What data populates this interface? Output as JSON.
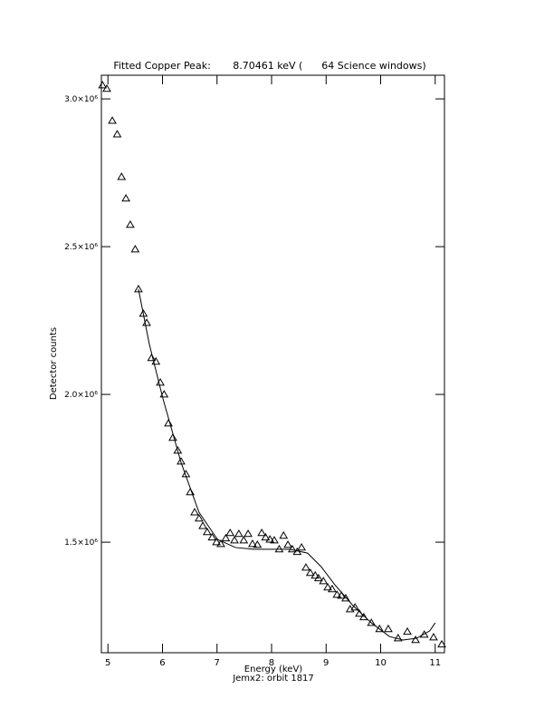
{
  "chart_data": {
    "type": "scatter",
    "title": "Fitted Copper Peak:       8.70461 keV (      64 Science windows)",
    "xlabel": "Energy (keV)",
    "ylabel": "Detector counts",
    "subtitle": "Jemx2: orbit 1817",
    "xlim": [
      4.88,
      11.17
    ],
    "ylim": [
      1126000,
      3080000
    ],
    "xticks": [
      5,
      6,
      7,
      8,
      9,
      10,
      11
    ],
    "yticks": [
      {
        "value": 1500000,
        "label": "1.5×10⁶"
      },
      {
        "value": 2000000,
        "label": "2.0×10⁶"
      },
      {
        "value": 2500000,
        "label": "2.5×10⁶"
      },
      {
        "value": 3000000,
        "label": "3.0×10⁶"
      }
    ],
    "series": [
      {
        "marker": "triangle",
        "color": "#000000",
        "x": [
          4.9,
          4.98,
          5.08,
          5.17,
          5.25,
          5.33,
          5.41,
          5.5,
          5.56,
          5.65,
          5.71,
          5.8,
          5.88,
          5.96,
          6.03,
          6.11,
          6.19,
          6.28,
          6.34,
          6.43,
          6.51,
          6.59,
          6.67,
          6.74,
          6.82,
          6.91,
          6.99,
          7.07,
          7.16,
          7.24,
          7.32,
          7.4,
          7.49,
          7.57,
          7.65,
          7.74,
          7.82,
          7.89,
          7.97,
          8.05,
          8.14,
          8.22,
          8.3,
          8.38,
          8.47,
          8.55,
          8.63,
          8.71,
          8.8,
          8.86,
          8.95,
          9.03,
          9.11,
          9.2,
          9.28,
          9.36,
          9.44,
          9.53,
          9.61,
          9.69,
          9.83,
          9.98,
          10.14,
          10.32,
          10.49,
          10.64,
          10.8,
          10.97,
          11.12
        ],
        "values": [
          3046000,
          3034000,
          2926000,
          2880000,
          2736000,
          2663000,
          2574000,
          2491000,
          2356000,
          2273000,
          2242000,
          2123000,
          2111000,
          2040000,
          2000000,
          1902000,
          1853000,
          1810000,
          1773000,
          1730000,
          1669000,
          1601000,
          1580000,
          1555000,
          1534000,
          1516000,
          1500000,
          1494000,
          1513000,
          1531000,
          1506000,
          1528000,
          1506000,
          1528000,
          1494000,
          1491000,
          1531000,
          1516000,
          1509000,
          1506000,
          1476000,
          1522000,
          1491000,
          1476000,
          1467000,
          1482000,
          1414000,
          1396000,
          1387000,
          1378000,
          1368000,
          1347000,
          1341000,
          1322000,
          1319000,
          1310000,
          1273000,
          1279000,
          1258000,
          1246000,
          1227000,
          1206000,
          1206000,
          1175000,
          1197000,
          1169000,
          1187000,
          1178000,
          1154000
        ]
      },
      {
        "marker": "line",
        "color": "#000000",
        "x": [
          5.56,
          5.76,
          6.01,
          6.34,
          6.67,
          7.01,
          7.34,
          7.67,
          8.0,
          8.33,
          8.66,
          8.91,
          9.16,
          9.49,
          9.83,
          10.16,
          10.41,
          10.66,
          10.9,
          11.0
        ],
        "values": [
          2356000,
          2169000,
          1985000,
          1770000,
          1601000,
          1509000,
          1482000,
          1476000,
          1476000,
          1476000,
          1463000,
          1417000,
          1356000,
          1286000,
          1227000,
          1181000,
          1169000,
          1175000,
          1200000,
          1227000
        ]
      }
    ]
  }
}
